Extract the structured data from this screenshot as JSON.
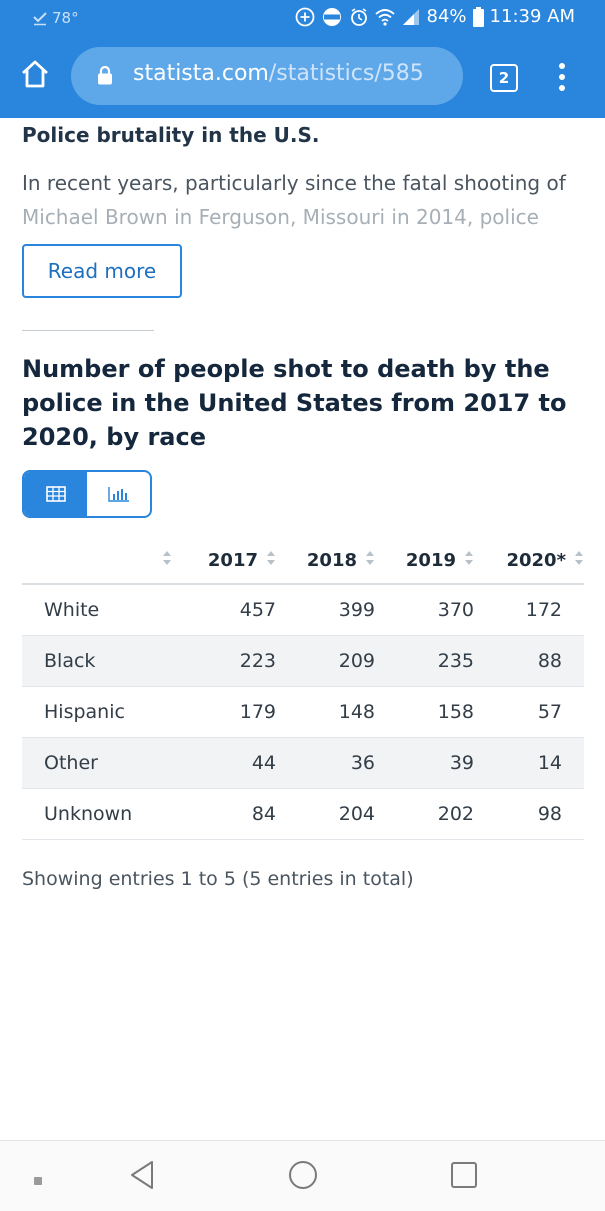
{
  "status_bar": {
    "temperature": "78°",
    "battery": "84%",
    "time": "11:39 AM",
    "icons": [
      "checkmark-icon",
      "add-circle-icon",
      "volte-icon",
      "alarm-icon",
      "wifi-icon",
      "signal-icon",
      "battery-icon"
    ]
  },
  "browser": {
    "url_host": "statista.com",
    "url_path": "/statistics/585",
    "tab_count": "2"
  },
  "article": {
    "section_title": "Police brutality in the U.S.",
    "paragraph_line1": "In recent years, particularly since the fatal shooting of",
    "paragraph_line2": "Michael Brown in Ferguson, Missouri in 2014, police",
    "read_more_label": "Read more"
  },
  "chart_title": "Number of people shot to death by the police in the United States from 2017 to 2020, by race",
  "view_toggle": {
    "table_view": "table-view-icon",
    "chart_view": "chart-view-icon",
    "active": "table"
  },
  "chart_data": {
    "type": "table",
    "title": "Number of people shot to death by the police in the United States from 2017 to 2020, by race",
    "columns": [
      "2017",
      "2018",
      "2019",
      "2020*"
    ],
    "rows": [
      {
        "label": "White",
        "values": [
          "457",
          "399",
          "370",
          "172"
        ]
      },
      {
        "label": "Black",
        "values": [
          "223",
          "209",
          "235",
          "88"
        ]
      },
      {
        "label": "Hispanic",
        "values": [
          "179",
          "148",
          "158",
          "57"
        ]
      },
      {
        "label": "Other",
        "values": [
          "44",
          "36",
          "39",
          "14"
        ]
      },
      {
        "label": "Unknown",
        "values": [
          "84",
          "204",
          "202",
          "98"
        ]
      }
    ]
  },
  "showing_text": "Showing entries 1 to 5 (5 entries in total)",
  "colors": {
    "brand_blue": "#2a85dc",
    "heading": "#14273c",
    "row_alt": "#f1f3f5"
  }
}
